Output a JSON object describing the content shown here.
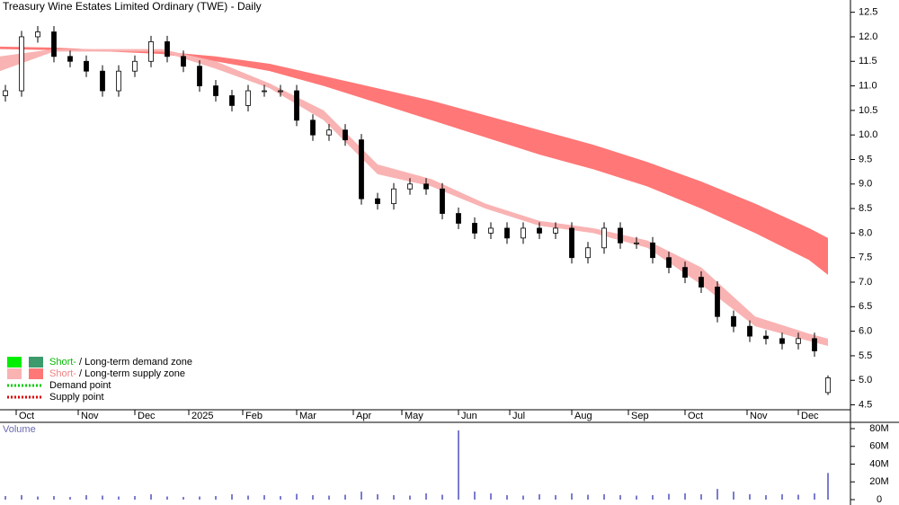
{
  "chart_data": {
    "type": "candlestick",
    "title": "Treasury Wine Estates Limited Ordinary (TWE) - Daily",
    "x": [
      2,
      8,
      14,
      20,
      26,
      32,
      38,
      44,
      50,
      56,
      62,
      68,
      74,
      80,
      86,
      92,
      98,
      104,
      110,
      116,
      122,
      128,
      134,
      140,
      146,
      152,
      158,
      164,
      170,
      176,
      182,
      188,
      194,
      200,
      206,
      212,
      218,
      224,
      230,
      236,
      242,
      248,
      254,
      260,
      266,
      272,
      278,
      284,
      290,
      296,
      302,
      307
    ],
    "open": [
      10.8,
      10.9,
      12.0,
      12.1,
      11.6,
      11.5,
      11.3,
      10.9,
      11.3,
      11.5,
      11.9,
      11.6,
      11.4,
      11.0,
      10.8,
      10.6,
      10.9,
      10.9,
      10.9,
      10.3,
      10.0,
      10.1,
      9.9,
      8.7,
      8.6,
      8.9,
      9.0,
      8.9,
      8.4,
      8.2,
      8.0,
      8.1,
      7.9,
      8.1,
      8.0,
      8.1,
      7.5,
      7.7,
      8.1,
      7.8,
      7.8,
      7.5,
      7.3,
      7.1,
      6.9,
      6.3,
      6.1,
      5.9,
      5.85,
      5.75,
      5.85,
      4.75
    ],
    "high": [
      11.02,
      12.12,
      12.22,
      12.22,
      11.72,
      11.62,
      11.42,
      11.42,
      11.62,
      12.02,
      12.02,
      11.72,
      11.52,
      11.12,
      10.92,
      11.02,
      11.02,
      11.02,
      11.02,
      10.42,
      10.22,
      10.22,
      10.02,
      8.82,
      9.02,
      9.12,
      9.12,
      9.02,
      8.52,
      8.32,
      8.22,
      8.22,
      8.22,
      8.22,
      8.22,
      8.22,
      7.82,
      8.22,
      8.22,
      7.92,
      7.92,
      7.62,
      7.42,
      7.22,
      7.02,
      6.42,
      6.22,
      6.02,
      5.97,
      5.97,
      5.97,
      5.1
    ],
    "low": [
      10.68,
      10.78,
      11.88,
      11.48,
      11.38,
      11.18,
      10.78,
      10.78,
      11.18,
      11.38,
      11.48,
      11.28,
      10.88,
      10.68,
      10.48,
      10.48,
      10.78,
      10.78,
      10.18,
      9.88,
      9.88,
      9.78,
      8.58,
      8.48,
      8.48,
      8.78,
      8.78,
      8.28,
      8.08,
      7.88,
      7.88,
      7.78,
      7.78,
      7.88,
      7.88,
      7.38,
      7.38,
      7.58,
      7.68,
      7.68,
      7.38,
      7.18,
      6.98,
      6.78,
      6.18,
      5.98,
      5.78,
      5.73,
      5.63,
      5.63,
      5.48,
      4.7
    ],
    "close": [
      10.9,
      12.0,
      12.1,
      11.6,
      11.5,
      11.3,
      10.9,
      11.3,
      11.5,
      11.9,
      11.6,
      11.4,
      11.0,
      10.8,
      10.6,
      10.9,
      10.9,
      10.9,
      10.3,
      10.0,
      10.1,
      9.9,
      8.7,
      8.6,
      8.9,
      9.0,
      8.9,
      8.4,
      8.2,
      8.0,
      8.1,
      7.9,
      8.1,
      8.0,
      8.1,
      7.5,
      7.7,
      8.1,
      7.8,
      7.8,
      7.5,
      7.3,
      7.1,
      6.9,
      6.3,
      6.1,
      5.9,
      5.85,
      5.75,
      5.85,
      5.6,
      5.05
    ],
    "bands": [
      {
        "name": "Long-term supply zone",
        "color": "#ff7777",
        "x": [
          0,
          20,
          40,
          60,
          80,
          100,
          120,
          140,
          160,
          180,
          200,
          220,
          240,
          260,
          280,
          300,
          307
        ],
        "upper": [
          11.8,
          11.78,
          11.73,
          11.7,
          11.6,
          11.45,
          11.2,
          10.95,
          10.7,
          10.4,
          10.1,
          9.8,
          9.45,
          9.05,
          8.6,
          8.1,
          7.9
        ],
        "lower": [
          11.75,
          11.73,
          11.7,
          11.65,
          11.5,
          11.3,
          11.0,
          10.65,
          10.3,
          9.95,
          9.6,
          9.3,
          8.95,
          8.5,
          8.0,
          7.45,
          7.15
        ]
      },
      {
        "name": "Short-term supply zone",
        "color": "#f9b3b3",
        "x": [
          0,
          20,
          40,
          60,
          80,
          100,
          120,
          140,
          160,
          180,
          200,
          220,
          240,
          260,
          280,
          300,
          307
        ],
        "upper": [
          11.6,
          11.75,
          11.75,
          11.75,
          11.5,
          11.05,
          10.5,
          9.4,
          9.1,
          8.6,
          8.25,
          8.1,
          7.85,
          7.3,
          6.3,
          5.95,
          5.85
        ],
        "lower": [
          11.3,
          11.7,
          11.7,
          11.7,
          11.35,
          10.95,
          10.3,
          9.2,
          8.95,
          8.5,
          8.15,
          8.0,
          7.7,
          6.95,
          6.1,
          5.8,
          5.7
        ]
      }
    ],
    "xlim": [
      0,
      315
    ],
    "xticks": [
      {
        "value": 6,
        "label": "Oct"
      },
      {
        "value": 29,
        "label": "Nov"
      },
      {
        "value": 50,
        "label": "Dec"
      },
      {
        "value": 70,
        "label": "2025"
      },
      {
        "value": 90,
        "label": "Feb"
      },
      {
        "value": 110,
        "label": "Mar"
      },
      {
        "value": 131,
        "label": "Apr"
      },
      {
        "value": 149,
        "label": "May"
      },
      {
        "value": 170,
        "label": "Jun"
      },
      {
        "value": 189,
        "label": "Jul"
      },
      {
        "value": 212,
        "label": "Aug"
      },
      {
        "value": 233,
        "label": "Sep"
      },
      {
        "value": 254,
        "label": "Oct"
      },
      {
        "value": 277,
        "label": "Nov"
      },
      {
        "value": 296,
        "label": "Dec"
      }
    ],
    "ylim": [
      4.4,
      12.75
    ],
    "yticks": [
      4.5,
      {
        "value": 5,
        "label": "5.0"
      },
      5.5,
      {
        "value": 6,
        "label": "6.0"
      },
      6.5,
      {
        "value": 7,
        "label": "7.0"
      },
      7.5,
      {
        "value": 8,
        "label": "8.0"
      },
      8.5,
      {
        "value": 9,
        "label": "9.0"
      },
      9.5,
      {
        "value": 10,
        "label": "10.0"
      },
      10.5,
      {
        "value": 11,
        "label": "11.0"
      },
      11.5,
      {
        "value": 12,
        "label": "12.0"
      },
      12.5
    ],
    "volume": {
      "label": "Volume",
      "color": "#7b7bd0",
      "values": [
        4000000,
        5000000,
        3500000,
        4000000,
        3000000,
        5000000,
        4500000,
        3500000,
        4000000,
        6000000,
        3500000,
        3000000,
        3500000,
        4000000,
        6000000,
        4500000,
        5000000,
        4000000,
        6500000,
        5000000,
        4500000,
        5500000,
        9000000,
        6000000,
        5000000,
        4500000,
        7000000,
        5500000,
        78000000,
        9000000,
        7000000,
        5000000,
        4500000,
        6000000,
        5000000,
        7000000,
        5500000,
        6000000,
        5000000,
        4500000,
        5000000,
        6500000,
        7000000,
        6000000,
        12000000,
        9000000,
        6000000,
        5000000,
        6000000,
        5500000,
        7000000,
        30000000
      ],
      "ylim": [
        0,
        80000000
      ],
      "yticks": [
        {
          "value": 0,
          "label": "0"
        },
        {
          "value": 20000000,
          "label": "20M"
        },
        {
          "value": 40000000,
          "label": "40M"
        },
        {
          "value": 60000000,
          "label": "60M"
        },
        {
          "value": 80000000,
          "label": "80M"
        }
      ]
    },
    "legend": [
      {
        "short": "Short-",
        "rest": " / Long-term demand zone",
        "colors": [
          "#00ee00",
          "#3c9a6c"
        ],
        "text_color": "#00bb00"
      },
      {
        "short": "Short-",
        "rest": " / Long-term supply zone",
        "colors": [
          "#f9b3b3",
          "#ff7777"
        ],
        "text_color": "#f08080"
      },
      {
        "label": "Demand point",
        "color": "#00cc00"
      },
      {
        "label": "Supply point",
        "color": "#dd0000"
      }
    ]
  }
}
